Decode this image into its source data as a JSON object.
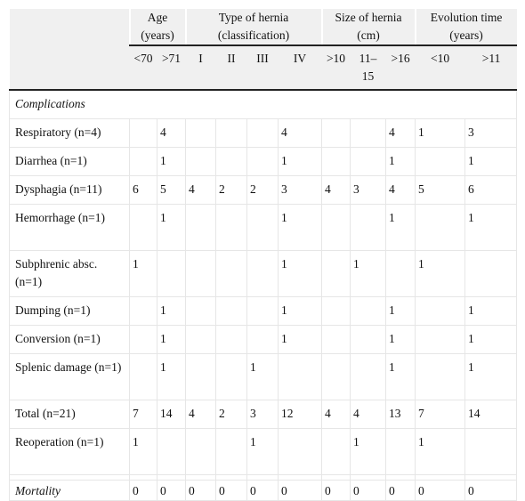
{
  "table": {
    "group_headers": [
      "Age (years)",
      "Type of hernia (classification)",
      "Size of hernia (cm)",
      "Evolution time (years)"
    ],
    "group_spans": [
      2,
      4,
      3,
      2
    ],
    "sub_headers": [
      "<70",
      ">71",
      "I",
      "II",
      "III",
      "IV",
      ">10",
      "11–15",
      ">16",
      "<10",
      ">11"
    ],
    "section_label": "Complications",
    "rows": [
      {
        "label": "Respiratory (n=4)",
        "values": [
          null,
          4,
          null,
          null,
          null,
          4,
          null,
          null,
          4,
          1,
          3
        ]
      },
      {
        "label": "Diarrhea (n=1)",
        "values": [
          null,
          1,
          null,
          null,
          null,
          1,
          null,
          null,
          1,
          null,
          1
        ]
      },
      {
        "label": "Dysphagia (n=11)",
        "values": [
          6,
          5,
          4,
          2,
          2,
          3,
          4,
          3,
          4,
          5,
          6
        ]
      },
      {
        "label": "Hemorrhage (n=1)",
        "values": [
          null,
          1,
          null,
          null,
          null,
          1,
          null,
          null,
          1,
          null,
          1
        ]
      },
      {
        "label": "Subphrenic absc. (n=1)",
        "values": [
          1,
          null,
          null,
          null,
          null,
          1,
          null,
          1,
          null,
          1,
          null
        ]
      },
      {
        "label": "Dumping (n=1)",
        "values": [
          null,
          1,
          null,
          null,
          null,
          1,
          null,
          null,
          1,
          null,
          1
        ]
      },
      {
        "label": "Conversion (n=1)",
        "values": [
          null,
          1,
          null,
          null,
          null,
          1,
          null,
          null,
          1,
          null,
          1
        ]
      },
      {
        "label": "Splenic damage (n=1)",
        "values": [
          null,
          1,
          null,
          null,
          1,
          null,
          null,
          null,
          1,
          null,
          1
        ]
      },
      {
        "label": "Total (n=21)",
        "values": [
          7,
          14,
          4,
          2,
          3,
          12,
          4,
          4,
          13,
          7,
          14
        ]
      },
      {
        "label": "Reoperation (n=1)",
        "values": [
          1,
          null,
          null,
          null,
          1,
          null,
          null,
          1,
          null,
          1,
          null
        ]
      }
    ],
    "mortality": {
      "label": "Mortality",
      "values": [
        0,
        0,
        0,
        0,
        0,
        0,
        0,
        0,
        0,
        0,
        0
      ]
    }
  }
}
